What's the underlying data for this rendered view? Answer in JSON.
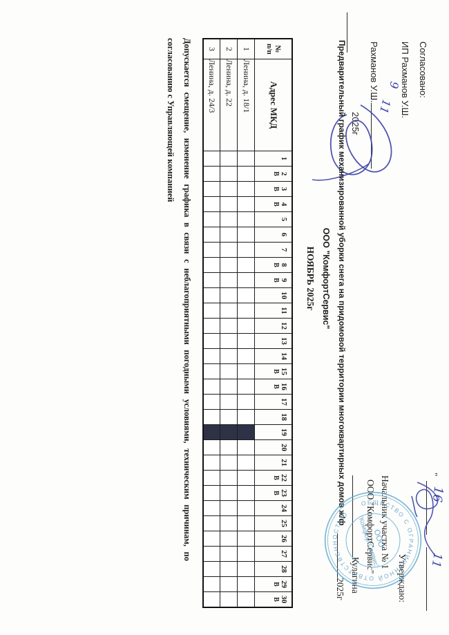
{
  "approve_left": {
    "line1": "Согласовано:",
    "line2": "ИП Рахманов  У.Ш.",
    "name": "Рахманов У.Ш.",
    "year": "2025г",
    "handwritten_day": "9",
    "handwritten_month": "11"
  },
  "title": {
    "line1": "Предварительный график механизированной уборки снега на придомовой территории многоквартирных домов  ж/ф",
    "line2": "ООО \"КомфортСервис\"",
    "line3": "НОЯБРЬ 2025г"
  },
  "approve_right": {
    "quote": "\"",
    "handwritten_day": "16",
    "handwritten_month": "11",
    "line1": "Утверждаю:",
    "line2": "Начальник участка № 1",
    "line3": "ООО \"КомфортСервис\"",
    "signatory": "Кулагина",
    "year": "2025г"
  },
  "stamp": {
    "ring_text": "ОБЩЕСТВО С ОГРАНИЧЕННОЙ ОТВЕТСТВЕННОСТЬЮ",
    "center_line1": "ООО",
    "center_line2": "\"КомфортСервис\"",
    "color": "#5ea9cd"
  },
  "table": {
    "col1": {
      "top": "№",
      "bottom": "п/п"
    },
    "col2": "Адрес МКД",
    "days": [
      {
        "d": "1",
        "w": ""
      },
      {
        "d": "2",
        "w": "В"
      },
      {
        "d": "3",
        "w": "В"
      },
      {
        "d": "4",
        "w": "В"
      },
      {
        "d": "5",
        "w": ""
      },
      {
        "d": "6",
        "w": ""
      },
      {
        "d": "7",
        "w": ""
      },
      {
        "d": "8",
        "w": "В"
      },
      {
        "d": "9",
        "w": "В"
      },
      {
        "d": "10",
        "w": ""
      },
      {
        "d": "11",
        "w": ""
      },
      {
        "d": "12",
        "w": ""
      },
      {
        "d": "13",
        "w": ""
      },
      {
        "d": "14",
        "w": ""
      },
      {
        "d": "15",
        "w": "В"
      },
      {
        "d": "16",
        "w": "В"
      },
      {
        "d": "17",
        "w": ""
      },
      {
        "d": "18",
        "w": ""
      },
      {
        "d": "19",
        "w": ""
      },
      {
        "d": "20",
        "w": ""
      },
      {
        "d": "21",
        "w": ""
      },
      {
        "d": "22",
        "w": "В"
      },
      {
        "d": "23",
        "w": "В"
      },
      {
        "d": "24",
        "w": ""
      },
      {
        "d": "25",
        "w": ""
      },
      {
        "d": "26",
        "w": ""
      },
      {
        "d": "27",
        "w": ""
      },
      {
        "d": "28",
        "w": ""
      },
      {
        "d": "29",
        "w": "В"
      },
      {
        "d": "30",
        "w": "В"
      }
    ],
    "rows": [
      {
        "num": "1",
        "address": "Ленина, д. 18/1",
        "filled_days": [
          19
        ]
      },
      {
        "num": "2",
        "address": "Ленина, д. 22",
        "filled_days": [
          19
        ]
      },
      {
        "num": "3",
        "address": "Ленина, д. 24/3",
        "filled_days": [
          19
        ]
      }
    ]
  },
  "note": {
    "line1": "Допускается смещение, изменение графика в  связи с неблагоприятными погодными условиями, техническим причинам, по",
    "line2": "согласованию с Управляющей компанией"
  }
}
